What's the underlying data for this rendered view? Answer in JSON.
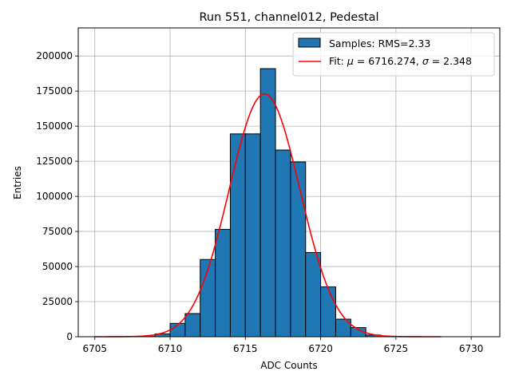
{
  "chart_data": {
    "type": "bar",
    "title": "Run 551, channel012, Pedestal",
    "xlabel": "ADC Counts",
    "ylabel": "Entries",
    "xlim": [
      6703.9,
      6731.9
    ],
    "ylim": [
      0,
      220000
    ],
    "xticks": [
      6705,
      6710,
      6715,
      6720,
      6725,
      6730
    ],
    "yticks": [
      0,
      25000,
      50000,
      75000,
      100000,
      125000,
      150000,
      175000,
      200000
    ],
    "grid": true,
    "legend_position": "upper-right",
    "histogram": {
      "name": "Samples: RMS=2.33",
      "color": "#1f77b4",
      "edgecolor": "#000000",
      "bin_width": 1,
      "bins": [
        {
          "x0": 6708,
          "value": 400
        },
        {
          "x0": 6709,
          "value": 2000
        },
        {
          "x0": 6710,
          "value": 9500
        },
        {
          "x0": 6711,
          "value": 16500
        },
        {
          "x0": 6712,
          "value": 55000
        },
        {
          "x0": 6713,
          "value": 76500
        },
        {
          "x0": 6714,
          "value": 144500
        },
        {
          "x0": 6715,
          "value": 144500
        },
        {
          "x0": 6716,
          "value": 191000
        },
        {
          "x0": 6717,
          "value": 133000
        },
        {
          "x0": 6718,
          "value": 124500
        },
        {
          "x0": 6719,
          "value": 60000
        },
        {
          "x0": 6720,
          "value": 35500
        },
        {
          "x0": 6721,
          "value": 12500
        },
        {
          "x0": 6722,
          "value": 6500
        },
        {
          "x0": 6723,
          "value": 1200
        },
        {
          "x0": 6724,
          "value": 300
        }
      ]
    },
    "fit": {
      "name": "Fit: μ = 6716.274, σ = 2.348",
      "mu_label": "μ",
      "sigma_label": "σ",
      "fit_prefix": "Fit: ",
      "mu_text": " = 6716.274, ",
      "sigma_text": " = 2.348",
      "color": "#ff0000",
      "mu": 6716.274,
      "sigma": 2.348,
      "amplitude": 173000,
      "x_range": [
        6705,
        6728
      ]
    }
  }
}
